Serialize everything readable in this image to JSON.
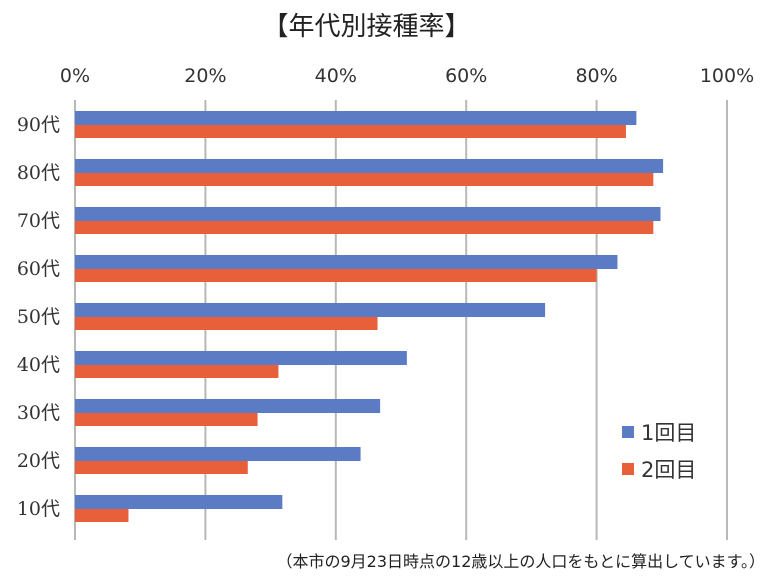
{
  "chart_data": {
    "type": "bar",
    "orientation": "horizontal",
    "title": "【年代別接種率】",
    "categories": [
      "90代",
      "80代",
      "70代",
      "60代",
      "50代",
      "40代",
      "30代",
      "20代",
      "10代"
    ],
    "series": [
      {
        "name": "1回目",
        "color": "#5b7cc4",
        "values": [
          86.1,
          90.2,
          89.8,
          83.2,
          72.1,
          50.9,
          46.8,
          43.8,
          31.8
        ]
      },
      {
        "name": "2回目",
        "color": "#e8603a",
        "values": [
          84.5,
          88.7,
          88.7,
          80.0,
          46.4,
          31.2,
          28.0,
          26.5,
          8.2
        ]
      }
    ],
    "xlim": [
      0,
      100
    ],
    "xticks": [
      "0%",
      "20%",
      "40%",
      "60%",
      "80%",
      "100%"
    ],
    "grid": true,
    "legend": "right",
    "note": "（本市の9月23日時点の12歳以上の人口をもとに算出しています。）"
  }
}
